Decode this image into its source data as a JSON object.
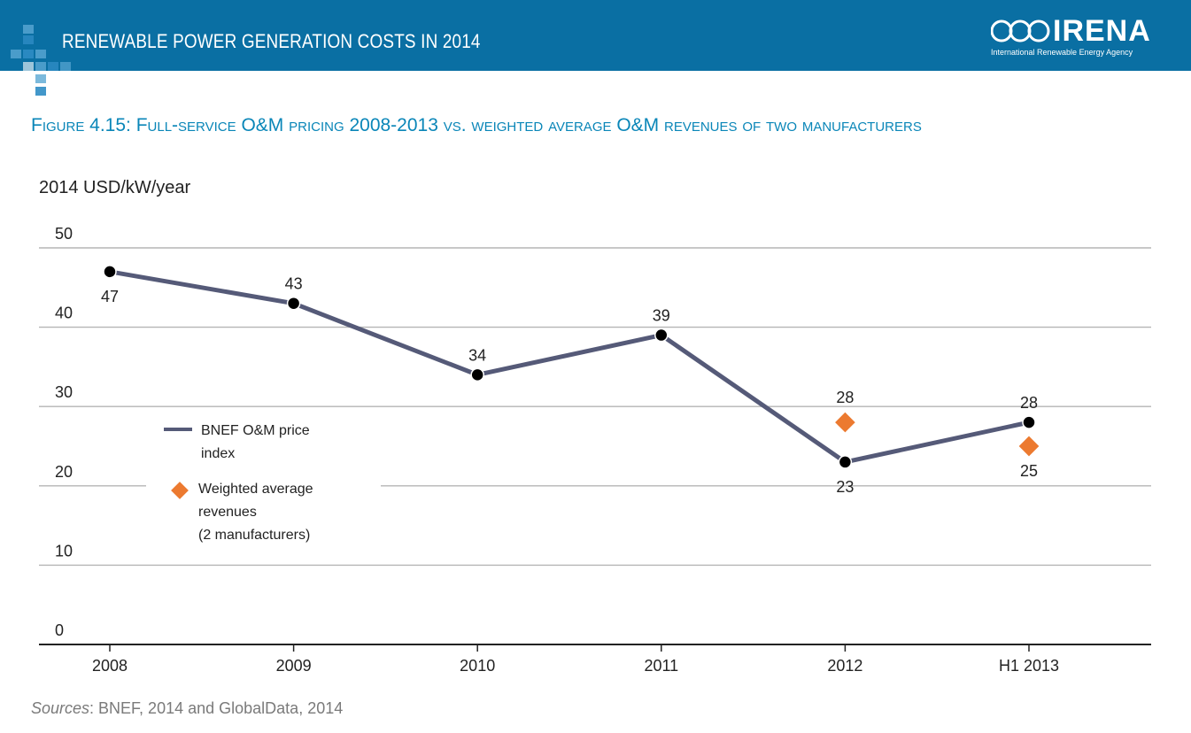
{
  "header": {
    "title": "RENEWABLE POWER GENERATION COSTS IN 2014",
    "brand_name": "IRENA",
    "brand_subtitle": "International Renewable Energy Agency"
  },
  "figure_title": "Figure 4.15: Full-service O&M pricing 2008-2013 vs. weighted average O&M revenues of two manufacturers",
  "source": {
    "label": "Sources",
    "text": ": BNEF, 2014 and GlobalData, 2014"
  },
  "colors": {
    "header_bg": "#0a6fa3",
    "title": "#0a86b8",
    "line": "#555a78",
    "marker": "#000000",
    "diamond": "#ec7a30",
    "grid": "#b5b5b5"
  },
  "chart_data": {
    "type": "line",
    "ylabel": "2014 USD/kW/year",
    "ylim": [
      0,
      50
    ],
    "yticks": [
      0,
      10,
      20,
      30,
      40,
      50
    ],
    "grid": true,
    "categories": [
      "2008",
      "2009",
      "2010",
      "2011",
      "2012",
      "H1 2013"
    ],
    "series": [
      {
        "name": "BNEF O&M price index",
        "kind": "line",
        "values": [
          47,
          43,
          34,
          39,
          23,
          28
        ],
        "labels": [
          "47",
          "43",
          "34",
          "39",
          "23",
          "28"
        ]
      },
      {
        "name": "Weighted average revenues (2 manufacturers)",
        "kind": "scatter-diamond",
        "values": [
          null,
          null,
          null,
          null,
          28,
          25
        ],
        "labels": [
          "",
          "",
          "",
          "",
          "28",
          "25"
        ]
      }
    ],
    "legend": {
      "placement": "left-middle",
      "entries": [
        {
          "line1": "BNEF O&M price",
          "line2": "index",
          "line3": ""
        },
        {
          "line1": "Weighted average",
          "line2": "revenues",
          "line3": "(2 manufacturers)"
        }
      ]
    }
  }
}
